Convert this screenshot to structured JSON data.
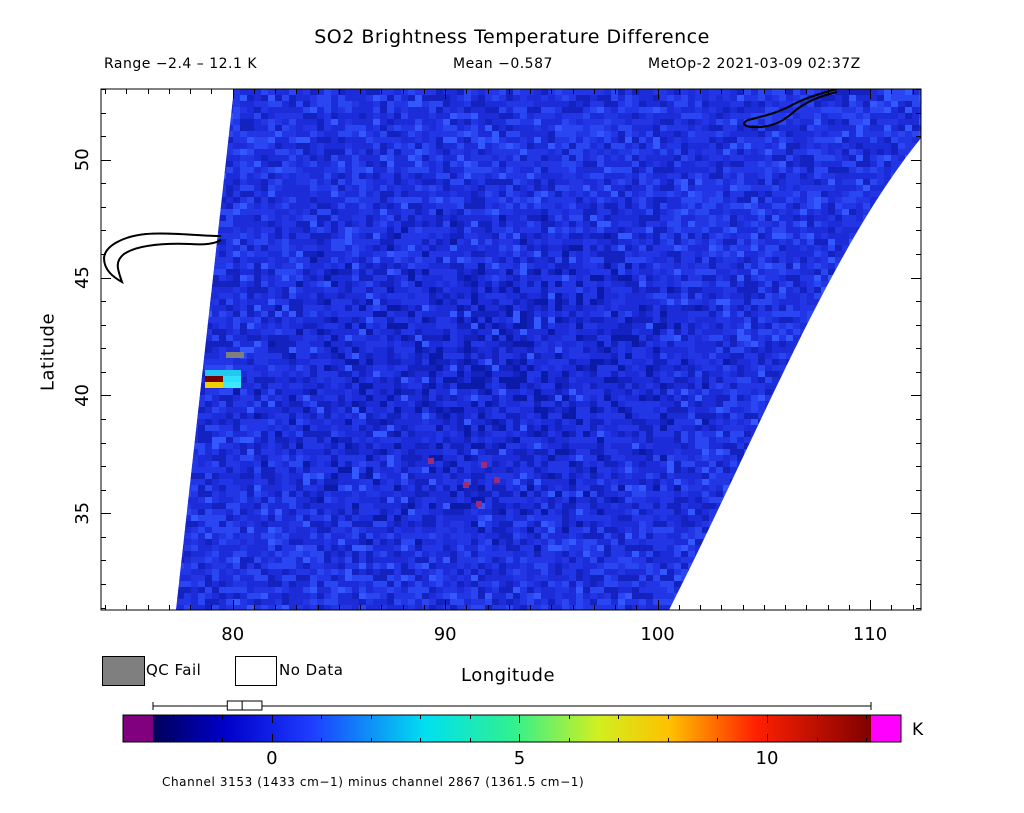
{
  "header": {
    "title": "SO2 Brightness Temperature Difference",
    "range_text": "Range −2.4 – 12.1 K",
    "mean_text": "Mean −0.587",
    "satellite_text": "MetOp-2 2021-03-09 02:37Z"
  },
  "axes": {
    "xlabel": "Longitude",
    "ylabel": "Latitude",
    "x_ticks": [
      "80",
      "90",
      "100",
      "110"
    ],
    "y_ticks": [
      "50",
      "45",
      "40",
      "35"
    ],
    "x_range": [
      73.8,
      112.4
    ],
    "y_range": [
      30.9,
      53.0
    ]
  },
  "legend": {
    "qc_fail_label": "QC Fail",
    "no_data_label": "No Data",
    "qc_fail_color": "#7f7f7f",
    "no_data_color": "#ffffff"
  },
  "colorbar": {
    "unit": "K",
    "ticks": [
      "0",
      "5",
      "10"
    ],
    "tick_values": [
      0,
      5,
      10
    ],
    "range": [
      -2.4,
      12.1
    ],
    "underflow_color": "#800080",
    "overflow_color": "#ff00ff",
    "box_whisker": {
      "min": -2.4,
      "q1": -0.9,
      "median": -0.6,
      "q3": -0.2,
      "max": 12.1
    }
  },
  "footer": "Channel 3153 (1433 cm−1) minus channel 2867 (1361.5 cm−1)",
  "colors": {
    "field_blue": "#1e2fe0",
    "no_data": "#ffffff",
    "coastline": "#000000"
  }
}
